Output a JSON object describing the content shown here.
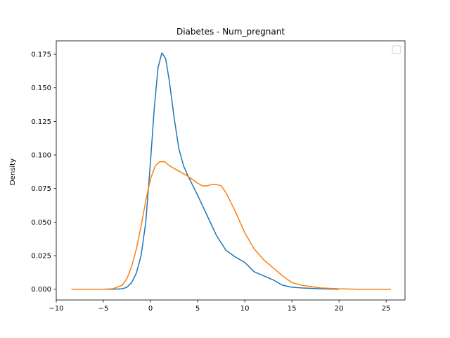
{
  "chart_data": {
    "type": "line",
    "title": "Diabetes - Num_pregnant",
    "xlabel": "",
    "ylabel": "Density",
    "xlim": [
      -10,
      27
    ],
    "ylim": [
      -0.008,
      0.185
    ],
    "xticks": [
      -10,
      -5,
      0,
      5,
      10,
      15,
      20,
      25
    ],
    "yticks": [
      0.0,
      0.025,
      0.05,
      0.075,
      0.1,
      0.125,
      0.15,
      0.175
    ],
    "yticklabels": [
      "0.000",
      "0.025",
      "0.050",
      "0.075",
      "0.100",
      "0.125",
      "0.150",
      "0.175"
    ],
    "grid": false,
    "legend": {
      "placement": "top-right",
      "entries": []
    },
    "series": [
      {
        "color": "#1f77b4",
        "points": [
          [
            -6.4,
            0.0
          ],
          [
            -4,
            0.0
          ],
          [
            -3,
            0.0003
          ],
          [
            -2.5,
            0.0015
          ],
          [
            -2,
            0.005
          ],
          [
            -1.5,
            0.012
          ],
          [
            -1,
            0.025
          ],
          [
            -0.5,
            0.05
          ],
          [
            0,
            0.095
          ],
          [
            0.4,
            0.135
          ],
          [
            0.8,
            0.165
          ],
          [
            1.2,
            0.176
          ],
          [
            1.6,
            0.172
          ],
          [
            2,
            0.155
          ],
          [
            2.5,
            0.128
          ],
          [
            3,
            0.105
          ],
          [
            3.5,
            0.092
          ],
          [
            4,
            0.084
          ],
          [
            5,
            0.07
          ],
          [
            6,
            0.055
          ],
          [
            7,
            0.04
          ],
          [
            8,
            0.029
          ],
          [
            9,
            0.024
          ],
          [
            10,
            0.02
          ],
          [
            11,
            0.013
          ],
          [
            12,
            0.01
          ],
          [
            13,
            0.007
          ],
          [
            14,
            0.003
          ],
          [
            15,
            0.0015
          ],
          [
            16,
            0.001
          ],
          [
            18,
            0.0003
          ],
          [
            20,
            0.0
          ]
        ]
      },
      {
        "color": "#ff7f0e",
        "points": [
          [
            -8.4,
            0.0
          ],
          [
            -5,
            0.0
          ],
          [
            -4,
            0.0003
          ],
          [
            -3,
            0.003
          ],
          [
            -2.5,
            0.008
          ],
          [
            -2,
            0.017
          ],
          [
            -1.5,
            0.03
          ],
          [
            -1,
            0.047
          ],
          [
            -0.5,
            0.066
          ],
          [
            0,
            0.082
          ],
          [
            0.5,
            0.092
          ],
          [
            1,
            0.095
          ],
          [
            1.5,
            0.095
          ],
          [
            2,
            0.092
          ],
          [
            3,
            0.088
          ],
          [
            4,
            0.084
          ],
          [
            5,
            0.079
          ],
          [
            5.5,
            0.077
          ],
          [
            6,
            0.077
          ],
          [
            6.5,
            0.078
          ],
          [
            7,
            0.078
          ],
          [
            7.5,
            0.077
          ],
          [
            8,
            0.072
          ],
          [
            9,
            0.058
          ],
          [
            10,
            0.042
          ],
          [
            11,
            0.03
          ],
          [
            12,
            0.022
          ],
          [
            13,
            0.016
          ],
          [
            14,
            0.01
          ],
          [
            15,
            0.005
          ],
          [
            16,
            0.003
          ],
          [
            17,
            0.002
          ],
          [
            18,
            0.001
          ],
          [
            20,
            0.0003
          ],
          [
            22,
            0.0
          ],
          [
            25.5,
            0.0
          ]
        ]
      }
    ]
  }
}
